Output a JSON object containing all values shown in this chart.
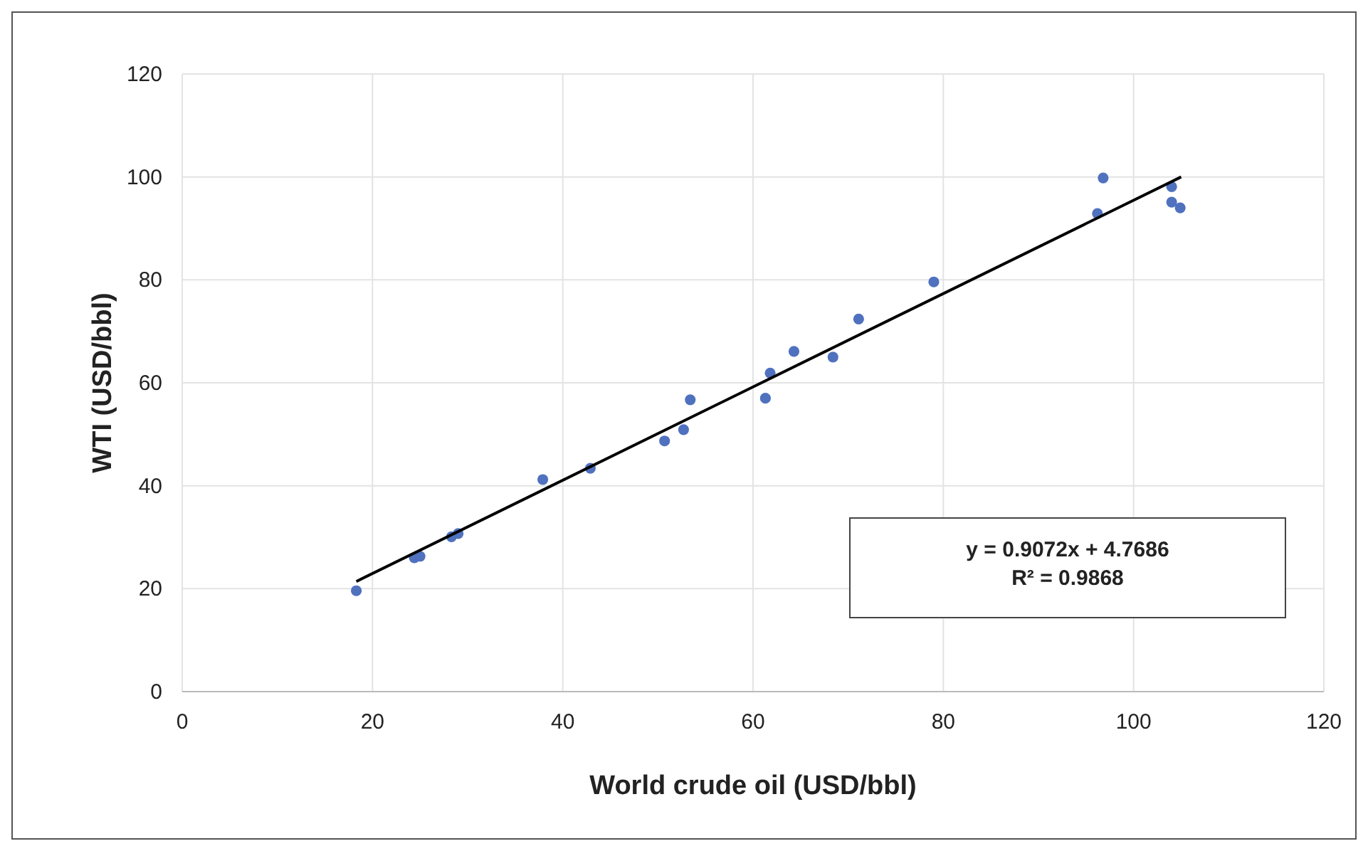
{
  "chart_data": {
    "type": "scatter",
    "xlabel": "World crude oil (USD/bbl)",
    "ylabel": "WTI (USD/bbl)",
    "xlim": [
      0,
      120
    ],
    "xticks": [
      0,
      20,
      40,
      60,
      80,
      100,
      120
    ],
    "ylim": [
      0,
      120
    ],
    "yticks": [
      0,
      20,
      40,
      60,
      80,
      100,
      120
    ],
    "grid": true,
    "series": [
      {
        "marker": "circle",
        "color": "#4f71be",
        "x": [
          18.3,
          24.4,
          25.0,
          28.3,
          29.0,
          37.9,
          42.9,
          50.7,
          52.7,
          53.4,
          61.3,
          61.8,
          64.3,
          68.4,
          71.1,
          79.0,
          96.2,
          96.8,
          104.0,
          104.0,
          104.9
        ],
        "values": [
          19.6,
          26.0,
          26.3,
          30.1,
          30.7,
          41.2,
          43.4,
          48.7,
          50.9,
          56.7,
          57.0,
          61.9,
          66.1,
          65.0,
          72.4,
          79.6,
          92.9,
          99.8,
          98.1,
          95.1,
          94.0
        ]
      },
      {
        "type": "line",
        "color": "#000000",
        "x": [
          18.3,
          105
        ],
        "values": [
          21.4,
          100.0
        ]
      }
    ],
    "annotations": [
      "y = 0.9072x + 4.7686",
      "R² = 0.9868"
    ]
  }
}
